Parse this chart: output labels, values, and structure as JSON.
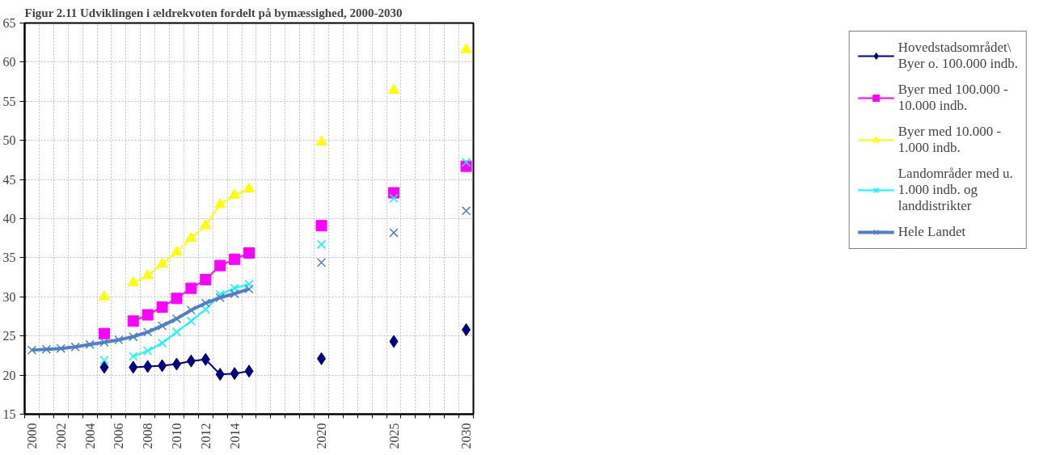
{
  "chart_data": {
    "type": "line",
    "title": "Figur 2.11 Udviklingen i ældrekvoten fordelt på bymæssighed, 2000-2030",
    "x": [
      2000,
      2001,
      2002,
      2003,
      2004,
      2005,
      2006,
      2007,
      2008,
      2009,
      2010,
      2011,
      2012,
      2013,
      2014,
      2015,
      2016,
      2017,
      2018,
      2019,
      2020,
      2021,
      2022,
      2023,
      2024,
      2025,
      2026,
      2027,
      2028,
      2029,
      2030
    ],
    "xlim": [
      1999.5,
      2030.5
    ],
    "xticks": [
      2000,
      2002,
      2004,
      2006,
      2008,
      2010,
      2012,
      2014,
      2020,
      2025,
      2030
    ],
    "ylim": [
      15,
      65
    ],
    "yticks": [
      15,
      20,
      25,
      30,
      35,
      40,
      45,
      50,
      55,
      60,
      65
    ],
    "grid": true,
    "legend": "right",
    "series": [
      {
        "name": "Hovedstadsområdet\\ Byer o. 100.000 indb.",
        "color": "#000080",
        "marker": "diamond",
        "values": [
          null,
          null,
          null,
          null,
          null,
          21.0,
          null,
          21.0,
          21.1,
          21.2,
          21.4,
          21.8,
          22.0,
          20.1,
          20.2,
          20.5,
          null,
          null,
          null,
          null,
          22.1,
          null,
          null,
          null,
          null,
          24.3,
          null,
          null,
          null,
          null,
          25.8
        ]
      },
      {
        "name": "Byer med 100.000 - 10.000 indb.",
        "color": "#ff00ff",
        "marker": "square",
        "values": [
          null,
          null,
          null,
          null,
          null,
          25.3,
          null,
          26.9,
          27.7,
          28.7,
          29.8,
          31.1,
          32.2,
          34.0,
          34.8,
          35.6,
          null,
          null,
          null,
          null,
          39.1,
          null,
          null,
          null,
          null,
          43.3,
          null,
          null,
          null,
          null,
          46.7
        ]
      },
      {
        "name": "Byer med 10.000 - 1.000 indb.",
        "color": "#ffff00",
        "marker": "triangle",
        "values": [
          null,
          null,
          null,
          null,
          null,
          30.0,
          null,
          31.8,
          32.7,
          34.2,
          35.7,
          37.5,
          39.1,
          41.8,
          43.0,
          43.8,
          null,
          null,
          null,
          null,
          49.8,
          null,
          null,
          null,
          null,
          56.4,
          null,
          null,
          null,
          null,
          61.6
        ]
      },
      {
        "name": "Landområder med u. 1.000 indb. og landdistrikter",
        "color": "#00ffff",
        "marker": "cross",
        "values": [
          null,
          null,
          null,
          null,
          null,
          21.9,
          null,
          22.4,
          23.1,
          24.1,
          25.5,
          26.9,
          28.4,
          30.3,
          31.1,
          31.6,
          null,
          null,
          null,
          null,
          36.7,
          null,
          null,
          null,
          null,
          42.6,
          null,
          null,
          null,
          null,
          47.2
        ]
      },
      {
        "name": "Hele Landet",
        "color": "#4f7fc8",
        "marker": "cross",
        "values": [
          23.2,
          23.3,
          23.4,
          23.6,
          23.9,
          24.2,
          24.5,
          24.9,
          25.5,
          26.3,
          27.2,
          28.3,
          29.2,
          29.9,
          30.4,
          31.0,
          null,
          null,
          null,
          null,
          34.4,
          null,
          null,
          null,
          null,
          38.2,
          null,
          null,
          null,
          null,
          41.0
        ]
      }
    ]
  }
}
